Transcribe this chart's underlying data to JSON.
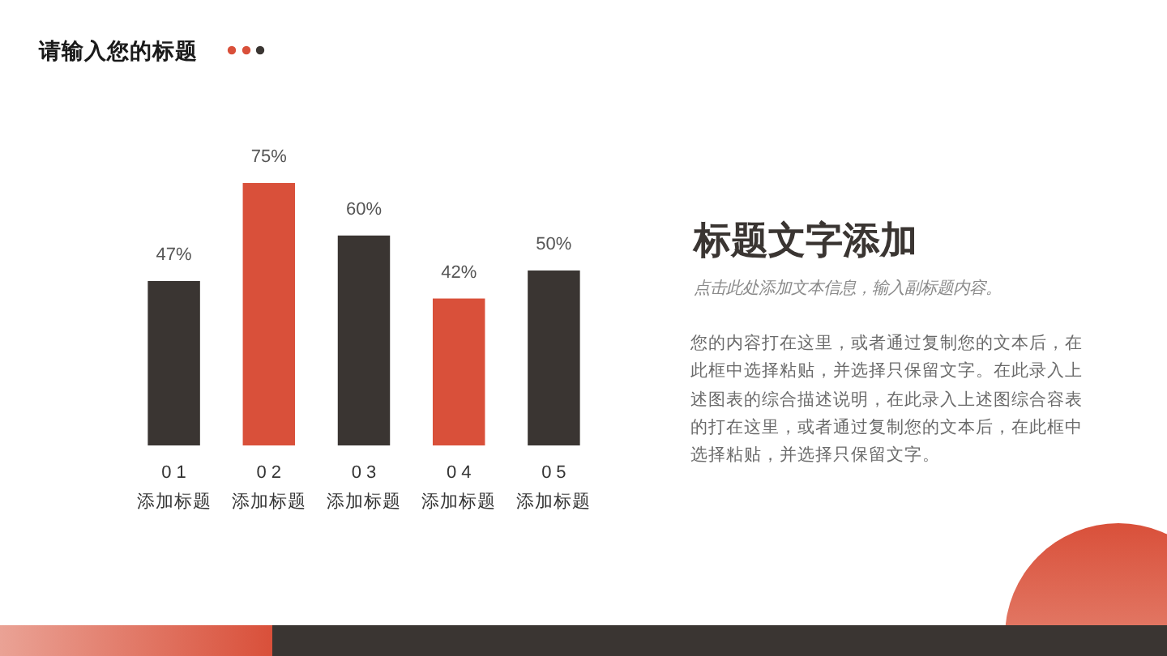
{
  "chart_data": {
    "type": "bar",
    "title": "请输入您的标题",
    "categories": [
      "01\n添加标题",
      "02\n添加标题",
      "03\n添加标题",
      "04\n添加标题",
      "05\n添加标题"
    ],
    "values": [
      47,
      75,
      60,
      42,
      50
    ],
    "value_labels": [
      "47%",
      "75%",
      "60%",
      "42%",
      "50%"
    ],
    "colors": [
      "#3a3532",
      "#d9503a",
      "#3a3532",
      "#d9503a",
      "#3a3532"
    ],
    "annotations": [
      "标题文字添加",
      "点击此处添加文本信息，输入副标题内容。",
      "您的内容打在这里，或者通过复制您的文本后，在此框中选择粘贴，并选择只保留文字。在此录入上述图表的综合描述说明，在此录入上述图综合容表的打在这里，或者通过复制您的文本后，在此框中选择粘贴，并选择只保留文字。"
    ]
  }
}
